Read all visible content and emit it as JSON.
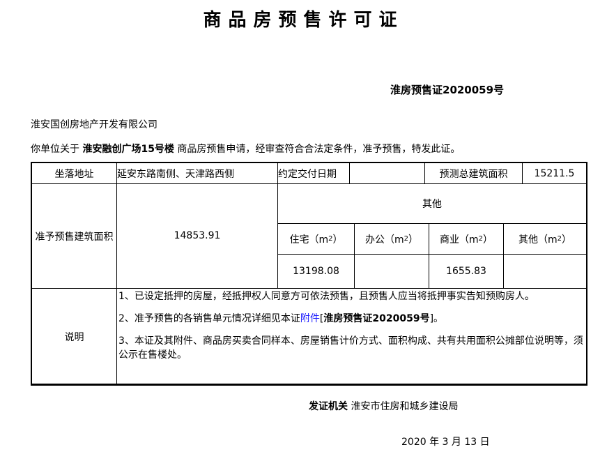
{
  "title": "商品房预售许可证",
  "cert_no": "淮房预售证2020059号",
  "company": "淮安国创房地产开发有限公司",
  "intro": {
    "prefix": "你单位关于 ",
    "project": "淮安融创广场15号楼",
    "suffix": " 商品房预售申请，经审查符合合法定条件，准予预售，特发此证。"
  },
  "table": {
    "location_label": "坐落地址",
    "location_value": "延安东路南侧、天津路西侧",
    "delivery_label": "约定交付日期",
    "delivery_value": "",
    "total_area_label": "预测总建筑面积",
    "total_area_value": "15211.5",
    "approved_area_label": "准予预售建筑面积",
    "approved_area_value": "14853.91",
    "other_header": "其他",
    "sub_headers": [
      "住宅（m",
      "办公（m",
      "商业（m",
      "其他（m"
    ],
    "sup": "2",
    "close": "）",
    "sub_values": [
      "13198.08",
      "",
      "1655.83",
      ""
    ],
    "notes_label": "说明",
    "note1": "1、已设定抵押的房屋，经抵押权人同意方可依法预售，且预售人应当将抵押事实告知预购房人。",
    "note2_prefix": "2、准予预售的各销售单元情况详细见本证",
    "note2_link": "附件",
    "note2_open": "[",
    "note2_bold": "淮房预售证2020059号",
    "note2_end": "]。",
    "note3": "3、本证及其附件、商品房买卖合同样本、房屋销售计价方式、面积构成、共有共用面积公摊部位说明等，须公示在售楼处。"
  },
  "issuer_label": "发证机关",
  "issuer": "淮安市住房和城乡建设局",
  "date": "2020 年 3 月 13 日"
}
